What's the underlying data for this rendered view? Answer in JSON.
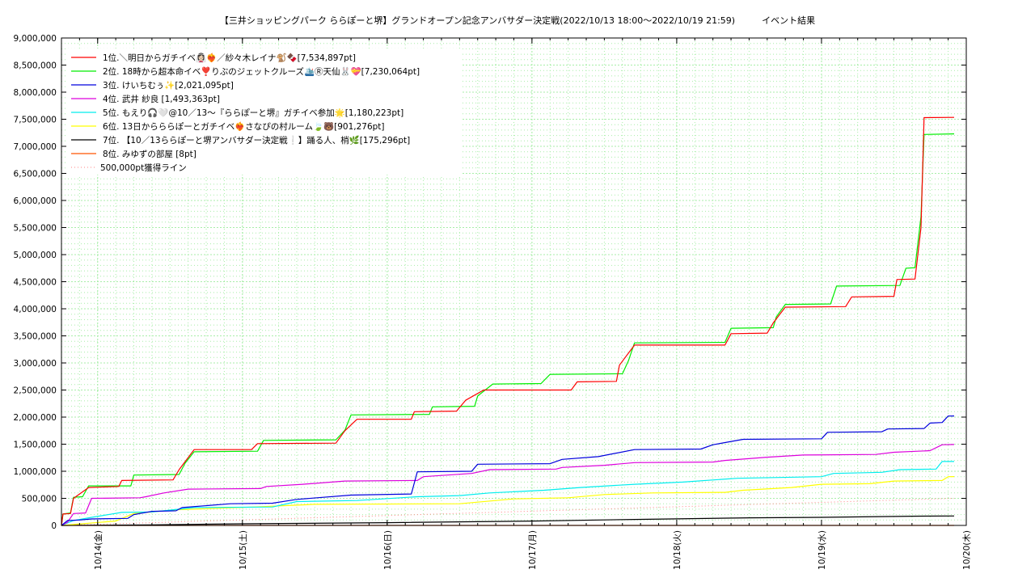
{
  "chart_data": {
    "type": "line",
    "title": "【三井ショッピングパーク ららぽーと堺】グランドオープン記念アンバサダー決定戦(2022/10/13 18:00～2022/10/19 21:59)　　　イベント結果",
    "xlabel": "",
    "ylabel": "",
    "x_range": [
      "2022-10-13 18:00",
      "2022-10-19 21:59"
    ],
    "ylim": [
      0,
      9000000
    ],
    "y_ticks": [
      "0",
      "500,000",
      "1,000,000",
      "1,500,000",
      "2,000,000",
      "2,500,000",
      "3,000,000",
      "3,500,000",
      "4,000,000",
      "4,500,000",
      "5,000,000",
      "5,500,000",
      "6,000,000",
      "6,500,000",
      "7,000,000",
      "7,500,000",
      "8,000,000",
      "8,500,000",
      "9,000,000"
    ],
    "x_ticks": [
      {
        "label": "10/14(金)",
        "t": "2022-10-14 00:00"
      },
      {
        "label": "10/15(土)",
        "t": "2022-10-15 00:00"
      },
      {
        "label": "10/16(日)",
        "t": "2022-10-16 00:00"
      },
      {
        "label": "10/17(月)",
        "t": "2022-10-17 00:00"
      },
      {
        "label": "10/18(火)",
        "t": "2022-10-18 00:00"
      },
      {
        "label": "10/19(水)",
        "t": "2022-10-19 00:00"
      },
      {
        "label": "10/20(木)",
        "t": "2022-10-20 00:00"
      }
    ],
    "grid": true,
    "legend_position": "top-left",
    "series": [
      {
        "name": "1位.＼明日からガチイベ👰🏻‍♀️❤️‍🔥／紗々木レイナ🐒🍫[7,534,897pt]",
        "color": "#ff0000",
        "style": "solid",
        "points": [
          [
            "2022-10-13 18:00",
            0
          ],
          [
            "2022-10-13 18:15",
            210000
          ],
          [
            "2022-10-13 19:30",
            220000
          ],
          [
            "2022-10-13 20:00",
            500000
          ],
          [
            "2022-10-13 22:30",
            700000
          ],
          [
            "2022-10-14 03:30",
            720000
          ],
          [
            "2022-10-14 04:00",
            830000
          ],
          [
            "2022-10-14 12:30",
            840000
          ],
          [
            "2022-10-14 13:30",
            1030000
          ],
          [
            "2022-10-14 16:00",
            1400000
          ],
          [
            "2022-10-15 01:30",
            1400000
          ],
          [
            "2022-10-15 02:30",
            1510000
          ],
          [
            "2022-10-15 15:30",
            1520000
          ],
          [
            "2022-10-15 17:00",
            1750000
          ],
          [
            "2022-10-15 19:00",
            1960000
          ],
          [
            "2022-10-16 04:00",
            1960000
          ],
          [
            "2022-10-16 04:30",
            2100000
          ],
          [
            "2022-10-16 11:30",
            2110000
          ],
          [
            "2022-10-16 13:00",
            2310000
          ],
          [
            "2022-10-16 16:00",
            2500000
          ],
          [
            "2022-10-17 06:30",
            2500000
          ],
          [
            "2022-10-17 07:30",
            2650000
          ],
          [
            "2022-10-17 14:00",
            2660000
          ],
          [
            "2022-10-17 14:30",
            2960000
          ],
          [
            "2022-10-17 17:00",
            3330000
          ],
          [
            "2022-10-18 08:00",
            3330000
          ],
          [
            "2022-10-18 09:00",
            3540000
          ],
          [
            "2022-10-18 15:00",
            3550000
          ],
          [
            "2022-10-18 16:00",
            3740000
          ],
          [
            "2022-10-18 18:00",
            4030000
          ],
          [
            "2022-10-19 04:00",
            4040000
          ],
          [
            "2022-10-19 05:00",
            4220000
          ],
          [
            "2022-10-19 12:00",
            4230000
          ],
          [
            "2022-10-19 12:30",
            4540000
          ],
          [
            "2022-10-19 15:30",
            4550000
          ],
          [
            "2022-10-19 16:30",
            5500000
          ],
          [
            "2022-10-19 17:00",
            7530000
          ],
          [
            "2022-10-19 21:59",
            7534897
          ]
        ]
      },
      {
        "name": "2位. 18時から超本命イベ❣️りぶのジェットクルーズ🛳️Ⓡ天仙🐰💝[7,230,064pt]",
        "color": "#00ee00",
        "style": "solid",
        "points": [
          [
            "2022-10-13 18:00",
            0
          ],
          [
            "2022-10-13 18:15",
            210000
          ],
          [
            "2022-10-13 19:30",
            230000
          ],
          [
            "2022-10-13 20:00",
            520000
          ],
          [
            "2022-10-13 21:30",
            530000
          ],
          [
            "2022-10-13 22:30",
            730000
          ],
          [
            "2022-10-14 05:30",
            730000
          ],
          [
            "2022-10-14 06:00",
            930000
          ],
          [
            "2022-10-14 13:30",
            940000
          ],
          [
            "2022-10-14 14:30",
            1150000
          ],
          [
            "2022-10-14 16:00",
            1360000
          ],
          [
            "2022-10-15 02:30",
            1370000
          ],
          [
            "2022-10-15 03:30",
            1570000
          ],
          [
            "2022-10-15 15:30",
            1580000
          ],
          [
            "2022-10-15 17:00",
            1760000
          ],
          [
            "2022-10-15 18:00",
            2040000
          ],
          [
            "2022-10-16 07:00",
            2050000
          ],
          [
            "2022-10-16 07:30",
            2190000
          ],
          [
            "2022-10-16 14:30",
            2200000
          ],
          [
            "2022-10-16 15:00",
            2390000
          ],
          [
            "2022-10-16 17:30",
            2610000
          ],
          [
            "2022-10-17 01:30",
            2620000
          ],
          [
            "2022-10-17 03:00",
            2790000
          ],
          [
            "2022-10-17 15:00",
            2800000
          ],
          [
            "2022-10-17 16:00",
            3040000
          ],
          [
            "2022-10-17 17:00",
            3370000
          ],
          [
            "2022-10-18 08:00",
            3380000
          ],
          [
            "2022-10-18 09:00",
            3640000
          ],
          [
            "2022-10-18 16:00",
            3650000
          ],
          [
            "2022-10-18 16:30",
            3850000
          ],
          [
            "2022-10-18 18:00",
            4080000
          ],
          [
            "2022-10-19 01:30",
            4090000
          ],
          [
            "2022-10-19 02:30",
            4420000
          ],
          [
            "2022-10-19 13:00",
            4430000
          ],
          [
            "2022-10-19 14:00",
            4750000
          ],
          [
            "2022-10-19 15:30",
            4760000
          ],
          [
            "2022-10-19 16:30",
            5700000
          ],
          [
            "2022-10-19 17:00",
            7220000
          ],
          [
            "2022-10-19 21:59",
            7230064
          ]
        ]
      },
      {
        "name": "3位. けいちむぅ✨[2,021,095pt]",
        "color": "#0000dd",
        "style": "solid",
        "points": [
          [
            "2022-10-13 18:00",
            0
          ],
          [
            "2022-10-13 19:00",
            90000
          ],
          [
            "2022-10-13 21:00",
            100000
          ],
          [
            "2022-10-13 23:00",
            120000
          ],
          [
            "2022-10-14 05:00",
            130000
          ],
          [
            "2022-10-14 06:00",
            200000
          ],
          [
            "2022-10-14 09:00",
            260000
          ],
          [
            "2022-10-14 13:00",
            270000
          ],
          [
            "2022-10-14 14:00",
            330000
          ],
          [
            "2022-10-14 22:00",
            400000
          ],
          [
            "2022-10-15 05:00",
            410000
          ],
          [
            "2022-10-15 09:00",
            480000
          ],
          [
            "2022-10-15 18:00",
            560000
          ],
          [
            "2022-10-16 04:00",
            580000
          ],
          [
            "2022-10-16 05:00",
            990000
          ],
          [
            "2022-10-16 14:00",
            1000000
          ],
          [
            "2022-10-16 15:00",
            1130000
          ],
          [
            "2022-10-17 03:00",
            1140000
          ],
          [
            "2022-10-17 05:00",
            1220000
          ],
          [
            "2022-10-17 11:00",
            1270000
          ],
          [
            "2022-10-17 17:00",
            1400000
          ],
          [
            "2022-10-18 04:00",
            1410000
          ],
          [
            "2022-10-18 06:00",
            1490000
          ],
          [
            "2022-10-18 11:00",
            1590000
          ],
          [
            "2022-10-19 00:00",
            1600000
          ],
          [
            "2022-10-19 01:00",
            1720000
          ],
          [
            "2022-10-19 10:00",
            1730000
          ],
          [
            "2022-10-19 11:00",
            1780000
          ],
          [
            "2022-10-19 17:00",
            1790000
          ],
          [
            "2022-10-19 18:00",
            1890000
          ],
          [
            "2022-10-19 20:00",
            1900000
          ],
          [
            "2022-10-19 21:00",
            2020000
          ],
          [
            "2022-10-19 21:59",
            2021095
          ]
        ]
      },
      {
        "name": "4位. 武井 紗良 [1,493,363pt]",
        "color": "#dd00dd",
        "style": "solid",
        "points": [
          [
            "2022-10-13 18:00",
            0
          ],
          [
            "2022-10-13 19:00",
            60000
          ],
          [
            "2022-10-13 20:00",
            220000
          ],
          [
            "2022-10-13 22:00",
            230000
          ],
          [
            "2022-10-13 23:00",
            500000
          ],
          [
            "2022-10-14 07:00",
            510000
          ],
          [
            "2022-10-14 08:00",
            530000
          ],
          [
            "2022-10-14 11:00",
            600000
          ],
          [
            "2022-10-14 15:00",
            670000
          ],
          [
            "2022-10-15 03:00",
            680000
          ],
          [
            "2022-10-15 04:00",
            720000
          ],
          [
            "2022-10-15 10:00",
            760000
          ],
          [
            "2022-10-15 17:00",
            820000
          ],
          [
            "2022-10-16 05:00",
            830000
          ],
          [
            "2022-10-16 06:00",
            900000
          ],
          [
            "2022-10-16 14:00",
            960000
          ],
          [
            "2022-10-16 17:00",
            1030000
          ],
          [
            "2022-10-17 04:00",
            1040000
          ],
          [
            "2022-10-17 05:00",
            1070000
          ],
          [
            "2022-10-17 12:00",
            1110000
          ],
          [
            "2022-10-17 17:00",
            1160000
          ],
          [
            "2022-10-18 06:00",
            1170000
          ],
          [
            "2022-10-18 08:00",
            1200000
          ],
          [
            "2022-10-18 15:00",
            1260000
          ],
          [
            "2022-10-18 21:00",
            1300000
          ],
          [
            "2022-10-19 09:00",
            1310000
          ],
          [
            "2022-10-19 12:00",
            1350000
          ],
          [
            "2022-10-19 16:00",
            1370000
          ],
          [
            "2022-10-19 18:00",
            1380000
          ],
          [
            "2022-10-19 20:00",
            1490000
          ],
          [
            "2022-10-19 21:59",
            1493363
          ]
        ]
      },
      {
        "name": "5位. もえり🎧🤍@10／13～『ららぽーと堺』ガチイベ参加🌟[1,180,223pt]",
        "color": "#00eeee",
        "style": "solid",
        "points": [
          [
            "2022-10-13 18:00",
            0
          ],
          [
            "2022-10-13 20:00",
            90000
          ],
          [
            "2022-10-13 23:00",
            150000
          ],
          [
            "2022-10-14 04:00",
            240000
          ],
          [
            "2022-10-14 09:00",
            250000
          ],
          [
            "2022-10-14 11:00",
            270000
          ],
          [
            "2022-10-14 16:00",
            330000
          ],
          [
            "2022-10-15 05:00",
            340000
          ],
          [
            "2022-10-15 09:00",
            440000
          ],
          [
            "2022-10-15 19:00",
            460000
          ],
          [
            "2022-10-16 05:00",
            530000
          ],
          [
            "2022-10-16 12:00",
            550000
          ],
          [
            "2022-10-16 17:00",
            600000
          ],
          [
            "2022-10-17 02:00",
            650000
          ],
          [
            "2022-10-17 08:00",
            700000
          ],
          [
            "2022-10-17 17:00",
            760000
          ],
          [
            "2022-10-18 01:00",
            800000
          ],
          [
            "2022-10-18 10:00",
            870000
          ],
          [
            "2022-10-19 00:00",
            900000
          ],
          [
            "2022-10-19 02:00",
            960000
          ],
          [
            "2022-10-19 10:00",
            980000
          ],
          [
            "2022-10-19 13:00",
            1030000
          ],
          [
            "2022-10-19 19:00",
            1040000
          ],
          [
            "2022-10-19 20:00",
            1180000
          ],
          [
            "2022-10-19 21:59",
            1180223
          ]
        ]
      },
      {
        "name": "6位. 13日からららぽーとガチイベ❤️‍🔥さなぴの村ルーム🍃🐻[901,276pt]",
        "color": "#ffff00",
        "style": "solid",
        "points": [
          [
            "2022-10-13 18:00",
            0
          ],
          [
            "2022-10-14 03:00",
            80000
          ],
          [
            "2022-10-14 06:00",
            220000
          ],
          [
            "2022-10-14 13:00",
            290000
          ],
          [
            "2022-10-15 02:00",
            340000
          ],
          [
            "2022-10-15 12:00",
            390000
          ],
          [
            "2022-10-16 12:00",
            400000
          ],
          [
            "2022-10-16 21:00",
            490000
          ],
          [
            "2022-10-17 06:00",
            510000
          ],
          [
            "2022-10-17 12:00",
            570000
          ],
          [
            "2022-10-17 20:00",
            600000
          ],
          [
            "2022-10-18 08:00",
            610000
          ],
          [
            "2022-10-18 11:00",
            650000
          ],
          [
            "2022-10-18 19:00",
            700000
          ],
          [
            "2022-10-19 00:00",
            760000
          ],
          [
            "2022-10-19 08:00",
            770000
          ],
          [
            "2022-10-19 12:00",
            820000
          ],
          [
            "2022-10-19 20:00",
            830000
          ],
          [
            "2022-10-19 21:00",
            900000
          ],
          [
            "2022-10-19 21:59",
            901276
          ]
        ]
      },
      {
        "name": "7位. 【10／13ららぽーと堺アンバサダー決定戦❕】踊る人、梢🌿[175,296pt]",
        "color": "#000000",
        "style": "solid",
        "points": [
          [
            "2022-10-13 18:00",
            0
          ],
          [
            "2022-10-14 09:00",
            10000
          ],
          [
            "2022-10-15 00:00",
            30000
          ],
          [
            "2022-10-16 00:00",
            50000
          ],
          [
            "2022-10-17 00:00",
            80000
          ],
          [
            "2022-10-17 17:00",
            110000
          ],
          [
            "2022-10-18 12:00",
            140000
          ],
          [
            "2022-10-19 00:00",
            150000
          ],
          [
            "2022-10-19 15:00",
            170000
          ],
          [
            "2022-10-19 21:59",
            175296
          ]
        ]
      },
      {
        "name": "8位. みゆずの部屋 [8pt]",
        "color": "#ff5500",
        "style": "solid",
        "points": [
          [
            "2022-10-13 18:00",
            0
          ],
          [
            "2022-10-19 21:59",
            8
          ]
        ]
      },
      {
        "name": "500,000pt獲得ライン",
        "color": "#ff8080",
        "style": "dotted",
        "points": [
          [
            "2022-10-13 18:00",
            0
          ],
          [
            "2022-10-19 21:59",
            500000
          ]
        ]
      }
    ]
  }
}
